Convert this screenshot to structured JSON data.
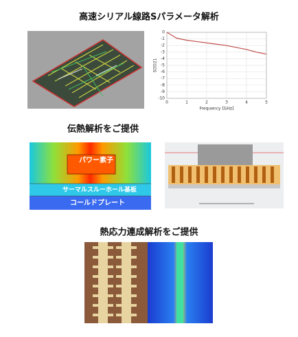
{
  "sections": [
    {
      "title": "高速シリアル線路Sパラメータ解析"
    },
    {
      "title": "伝熱解析をご提供",
      "labels": [
        "パワー素子",
        "サーマルスルーホール基板",
        "コールドプレート"
      ]
    },
    {
      "title": "熱応力連成解析をご提供"
    }
  ],
  "sparam_chart": {
    "type": "line",
    "xlabel": "Frequency [GHz]",
    "ylabel": "SDD21",
    "x": [
      0,
      0.5,
      1,
      1.5,
      2,
      2.5,
      3,
      3.5,
      4,
      4.5,
      5
    ],
    "series": [
      {
        "color": "#c0504d",
        "values": [
          0,
          -0.9,
          -1.2,
          -1.4,
          -1.6,
          -1.8,
          -2.0,
          -2.3,
          -2.6,
          -3.0,
          -3.3
        ]
      }
    ],
    "xlim": [
      0,
      5
    ],
    "ylim": [
      -10,
      0
    ],
    "xticks": [
      0,
      1,
      2,
      3,
      4,
      5
    ],
    "yticks": [
      0,
      -1,
      -2,
      -3,
      -4,
      -5,
      -6,
      -7,
      -8,
      -9,
      -10
    ],
    "grid": true
  }
}
